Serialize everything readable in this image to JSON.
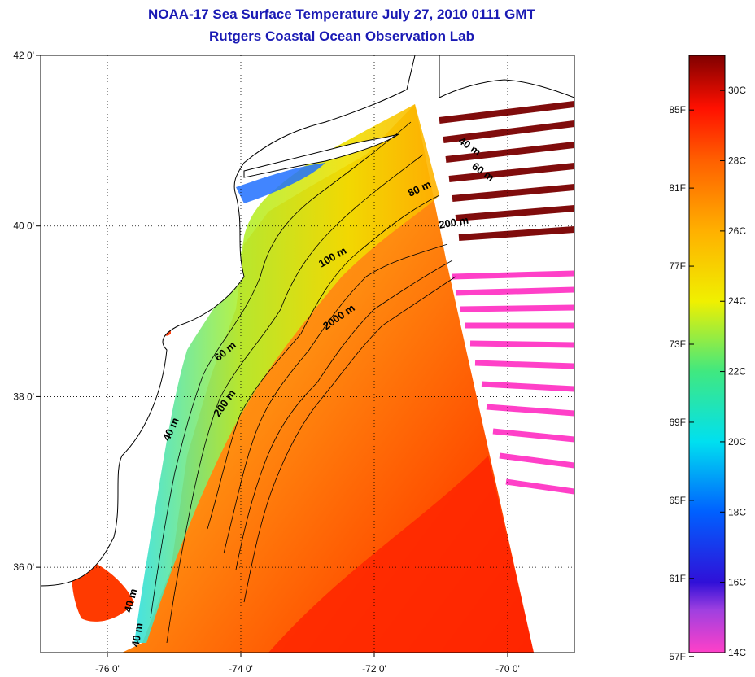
{
  "title": {
    "line1": "NOAA-17 Sea Surface Temperature July 27, 2010 0111 GMT",
    "line2": "Rutgers Coastal Ocean Observation Lab"
  },
  "map": {
    "lat_ticks": [
      {
        "value": 42,
        "label": "42 0'"
      },
      {
        "value": 40,
        "label": "40 0'"
      },
      {
        "value": 38,
        "label": "38 0'"
      },
      {
        "value": 36,
        "label": "36 0'"
      }
    ],
    "lon_ticks": [
      {
        "value": -76,
        "label": "-76 0'"
      },
      {
        "value": -74,
        "label": "-74 0'"
      },
      {
        "value": -72,
        "label": "-72 0'"
      },
      {
        "value": -70,
        "label": "-70 0'"
      }
    ],
    "contour_labels": [
      {
        "text": "40 m",
        "lon": -70.6,
        "lat": 40.9,
        "rot": 35
      },
      {
        "text": "60 m",
        "lon": -70.4,
        "lat": 40.6,
        "rot": 35
      },
      {
        "text": "80 m",
        "lon": -71.3,
        "lat": 40.4,
        "rot": -25
      },
      {
        "text": "200 m",
        "lon": -70.8,
        "lat": 40.0,
        "rot": -10
      },
      {
        "text": "100 m",
        "lon": -72.6,
        "lat": 39.6,
        "rot": -30
      },
      {
        "text": "2000 m",
        "lon": -72.5,
        "lat": 38.9,
        "rot": -35
      },
      {
        "text": "60 m",
        "lon": -74.2,
        "lat": 38.5,
        "rot": -40
      },
      {
        "text": "200 m",
        "lon": -74.2,
        "lat": 37.9,
        "rot": -55
      },
      {
        "text": "40 m",
        "lon": -75.0,
        "lat": 37.6,
        "rot": -65
      },
      {
        "text": "40 m",
        "lon": -75.6,
        "lat": 35.6,
        "rot": -75
      },
      {
        "text": "40 m",
        "lon": -75.5,
        "lat": 35.2,
        "rot": -80
      }
    ],
    "colors": {
      "land": "#ffffff",
      "coastline": "#000000",
      "grid": "#000000"
    }
  },
  "colorbar": {
    "fahrenheit_labels": [
      {
        "value": 85,
        "label": "85F"
      },
      {
        "value": 81,
        "label": "81F"
      },
      {
        "value": 77,
        "label": "77F"
      },
      {
        "value": 73,
        "label": "73F"
      },
      {
        "value": 69,
        "label": "69F"
      },
      {
        "value": 65,
        "label": "65F"
      },
      {
        "value": 61,
        "label": "61F"
      },
      {
        "value": 57,
        "label": "57F"
      }
    ],
    "celsius_labels": [
      {
        "value": 30,
        "label": "30C"
      },
      {
        "value": 28,
        "label": "28C"
      },
      {
        "value": 26,
        "label": "26C"
      },
      {
        "value": 24,
        "label": "24C"
      },
      {
        "value": 22,
        "label": "22C"
      },
      {
        "value": 20,
        "label": "20C"
      },
      {
        "value": 18,
        "label": "18C"
      },
      {
        "value": 16,
        "label": "16C"
      },
      {
        "value": 14,
        "label": "14C"
      }
    ],
    "range_c": [
      14,
      31
    ],
    "stops": [
      {
        "c": 14,
        "color": "#ff40c8"
      },
      {
        "c": 15.2,
        "color": "#a040e0"
      },
      {
        "c": 16,
        "color": "#3010d8"
      },
      {
        "c": 18,
        "color": "#0060ff"
      },
      {
        "c": 20,
        "color": "#00e0f0"
      },
      {
        "c": 22,
        "color": "#40e880"
      },
      {
        "c": 24,
        "color": "#f0f000"
      },
      {
        "c": 26,
        "color": "#ffb000"
      },
      {
        "c": 28,
        "color": "#ff6000"
      },
      {
        "c": 29.5,
        "color": "#ff1000"
      },
      {
        "c": 31,
        "color": "#800000"
      }
    ]
  }
}
